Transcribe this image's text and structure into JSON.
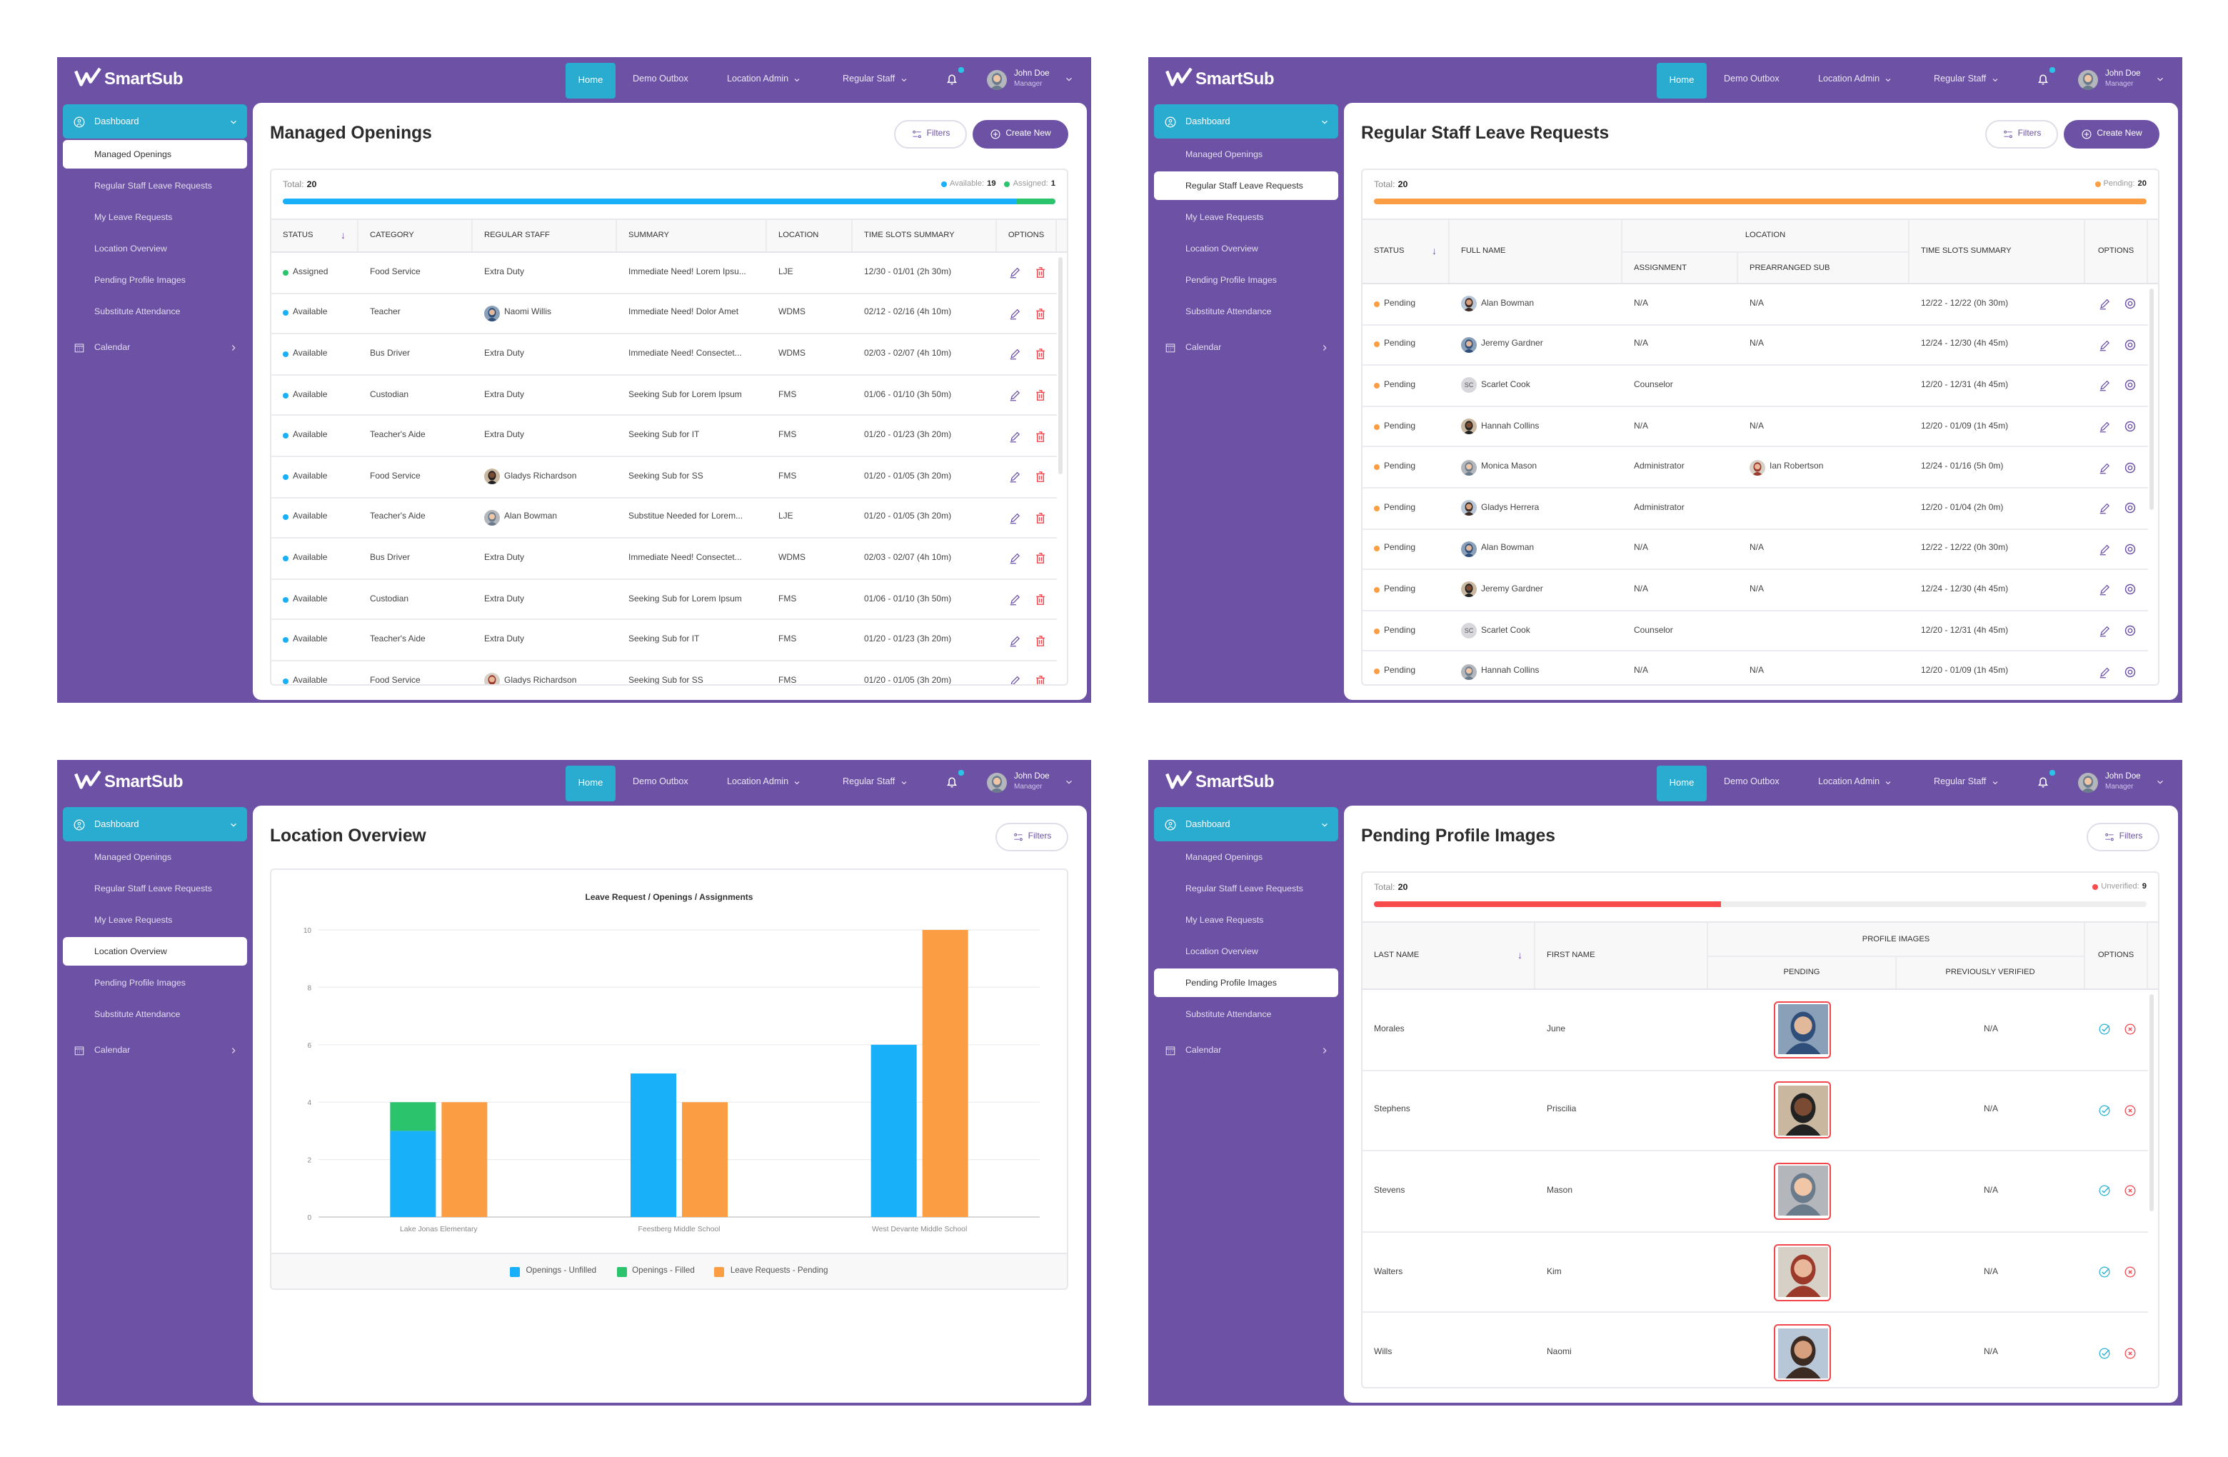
{
  "brand": {
    "name": "SmartSub"
  },
  "nav": {
    "items": [
      "Home",
      "Demo Outbox",
      "Location Admin",
      "Regular Staff"
    ],
    "user": {
      "name": "John Doe",
      "role": "Manager"
    }
  },
  "sidebar": {
    "dashboard": "Dashboard",
    "items": [
      "Managed Openings",
      "Regular Staff Leave Requests",
      "My Leave Requests",
      "Location Overview",
      "Pending Profile Images",
      "Substitute Attendance"
    ],
    "calendar": "Calendar"
  },
  "colors": {
    "brand_purple": "#6c51a5",
    "accent_teal": "#29acd0",
    "available": "#18b0f8",
    "assigned": "#2bc46d",
    "pending": "#fb9e43",
    "unverified": "#f84b4b"
  },
  "screens": [
    {
      "title": "Managed Openings",
      "active_item": 0,
      "filters_label": "Filters",
      "create_label": "Create New",
      "summary": {
        "total_label": "Total:",
        "total": 20,
        "legend": [
          {
            "label": "Available:",
            "value": 19,
            "color": "#18b0f8"
          },
          {
            "label": "Assigned:",
            "value": 1,
            "color": "#2bc46d"
          }
        ]
      },
      "table": {
        "columns": [
          "Status",
          "Category",
          "Regular Staff",
          "Summary",
          "Location",
          "Time Slots Summary",
          "Options"
        ],
        "sorted_by": "Status",
        "row_actions": [
          "edit-icon",
          "delete-icon"
        ],
        "rows": [
          {
            "status": "Assigned",
            "category": "Food Service",
            "staff": {
              "text": "Extra Duty"
            },
            "summary": "Immediate Need! Lorem Ipsu...",
            "location": "LJE",
            "time": "12/30 - 01/01 (2h 30m)"
          },
          {
            "status": "Available",
            "category": "Teacher",
            "staff": {
              "text": "Naomi Willis",
              "avatar": "photo"
            },
            "summary": "Immediate Need! Dolor Amet",
            "location": "WDMS",
            "time": "02/12 - 02/16 (4h 10m)"
          },
          {
            "status": "Available",
            "category": "Bus Driver",
            "staff": {
              "text": "Extra Duty"
            },
            "summary": "Immediate Need! Consectet...",
            "location": "WDMS",
            "time": "02/03 - 02/07 (4h 10m)"
          },
          {
            "status": "Available",
            "category": "Custodian",
            "staff": {
              "text": "Extra Duty"
            },
            "summary": "Seeking Sub for Lorem Ipsum",
            "location": "FMS",
            "time": "01/06 - 01/10 (3h 50m)"
          },
          {
            "status": "Available",
            "category": "Teacher's Aide",
            "staff": {
              "text": "Extra Duty"
            },
            "summary": "Seeking Sub for IT",
            "location": "FMS",
            "time": "01/20 - 01/23 (3h 20m)"
          },
          {
            "status": "Available",
            "category": "Food Service",
            "staff": {
              "text": "Gladys Richardson",
              "avatar": "photo"
            },
            "summary": "Seeking Sub for SS",
            "location": "FMS",
            "time": "01/20 - 01/05 (3h 20m)"
          },
          {
            "status": "Available",
            "category": "Teacher's Aide",
            "staff": {
              "text": "Alan Bowman",
              "avatar": "photo"
            },
            "summary": "Substitue Needed for Lorem...",
            "location": "LJE",
            "time": "01/20 - 01/05 (3h 20m)"
          },
          {
            "status": "Available",
            "category": "Bus Driver",
            "staff": {
              "text": "Extra Duty"
            },
            "summary": "Immediate Need! Consectet...",
            "location": "WDMS",
            "time": "02/03 - 02/07 (4h 10m)"
          },
          {
            "status": "Available",
            "category": "Custodian",
            "staff": {
              "text": "Extra Duty"
            },
            "summary": "Seeking Sub for Lorem Ipsum",
            "location": "FMS",
            "time": "01/06 - 01/10 (3h 50m)"
          },
          {
            "status": "Available",
            "category": "Teacher's Aide",
            "staff": {
              "text": "Extra Duty"
            },
            "summary": "Seeking Sub for IT",
            "location": "FMS",
            "time": "01/20 - 01/23 (3h 20m)"
          },
          {
            "status": "Available",
            "category": "Food Service",
            "staff": {
              "text": "Gladys Richardson",
              "avatar": "photo"
            },
            "summary": "Seeking Sub for SS",
            "location": "FMS",
            "time": "01/20 - 01/05 (3h 20m)"
          }
        ]
      }
    },
    {
      "title": "Regular Staff Leave Requests",
      "active_item": 1,
      "filters_label": "Filters",
      "create_label": "Create New",
      "summary": {
        "total_label": "Total:",
        "total": 20,
        "legend": [
          {
            "label": "Pending:",
            "value": 20,
            "color": "#fb9e43"
          }
        ]
      },
      "table": {
        "columns": [
          "Status",
          "Full Name",
          "Assignment",
          "Prearranged Sub",
          "Time Slots Summary",
          "Options"
        ],
        "group_header": "Location",
        "sorted_by": "Status",
        "row_actions": [
          "edit-icon",
          "view-icon"
        ],
        "rows": [
          {
            "status": "Pending",
            "name": {
              "text": "Alan Bowman",
              "avatar": "photo"
            },
            "assignment": "N/A",
            "prearranged": {
              "text": "N/A"
            },
            "time": "12/22 - 12/22 (0h 30m)"
          },
          {
            "status": "Pending",
            "name": {
              "text": "Jeremy Gardner",
              "avatar": "photo"
            },
            "assignment": "N/A",
            "prearranged": {
              "text": "N/A"
            },
            "time": "12/24 - 12/30 (4h 45m)"
          },
          {
            "status": "Pending",
            "name": {
              "text": "Scarlet Cook",
              "avatar": "initials",
              "initials": "SC"
            },
            "assignment": "Counselor",
            "prearranged": {
              "text": ""
            },
            "time": "12/20 - 12/31 (4h 45m)"
          },
          {
            "status": "Pending",
            "name": {
              "text": "Hannah Collins",
              "avatar": "photo"
            },
            "assignment": "N/A",
            "prearranged": {
              "text": "N/A"
            },
            "time": "12/20 - 01/09 (1h 45m)"
          },
          {
            "status": "Pending",
            "name": {
              "text": "Monica Mason",
              "avatar": "photo"
            },
            "assignment": "Administrator",
            "prearranged": {
              "text": "Ian Robertson",
              "avatar": "photo"
            },
            "time": "12/24 - 01/16 (5h 0m)"
          },
          {
            "status": "Pending",
            "name": {
              "text": "Gladys Herrera",
              "avatar": "photo"
            },
            "assignment": "Administrator",
            "prearranged": {
              "text": ""
            },
            "time": "12/20 - 01/04 (2h 0m)"
          },
          {
            "status": "Pending",
            "name": {
              "text": "Alan Bowman",
              "avatar": "photo"
            },
            "assignment": "N/A",
            "prearranged": {
              "text": "N/A"
            },
            "time": "12/22 - 12/22 (0h 30m)"
          },
          {
            "status": "Pending",
            "name": {
              "text": "Jeremy Gardner",
              "avatar": "photo"
            },
            "assignment": "N/A",
            "prearranged": {
              "text": "N/A"
            },
            "time": "12/24 - 12/30 (4h 45m)"
          },
          {
            "status": "Pending",
            "name": {
              "text": "Scarlet Cook",
              "avatar": "initials",
              "initials": "SC"
            },
            "assignment": "Counselor",
            "prearranged": {
              "text": ""
            },
            "time": "12/20 - 12/31 (4h 45m)"
          },
          {
            "status": "Pending",
            "name": {
              "text": "Hannah Collins",
              "avatar": "photo"
            },
            "assignment": "N/A",
            "prearranged": {
              "text": "N/A"
            },
            "time": "12/20 - 01/09 (1h 45m)"
          }
        ]
      }
    },
    {
      "title": "Location Overview",
      "active_item": 3,
      "filters_label": "Filters"
    },
    {
      "title": "Pending Profile Images",
      "active_item": 4,
      "filters_label": "Filters",
      "summary": {
        "total_label": "Total:",
        "total": 20,
        "legend": [
          {
            "label": "Unverified:",
            "value": 9,
            "color": "#f84b4b"
          }
        ]
      },
      "table": {
        "columns": [
          "Last Name",
          "First Name",
          "Pending",
          "Previously Verified",
          "Options"
        ],
        "group_header": "Profile Images",
        "sorted_by": "Last Name",
        "row_actions": [
          "approve-check-icon",
          "reject-x-icon"
        ],
        "rows": [
          {
            "last": "Morales",
            "first": "June",
            "pending": "profile-photo",
            "verified": "N/A"
          },
          {
            "last": "Stephens",
            "first": "Priscilia",
            "pending": "profile-photo",
            "verified": "N/A"
          },
          {
            "last": "Stevens",
            "first": "Mason",
            "pending": "profile-photo",
            "verified": "N/A"
          },
          {
            "last": "Walters",
            "first": "Kim",
            "pending": "profile-photo",
            "verified": "N/A"
          },
          {
            "last": "Wills",
            "first": "Naomi",
            "pending": "profile-photo",
            "verified": "N/A"
          }
        ]
      }
    }
  ],
  "chart_data": {
    "type": "bar",
    "title": "Leave Request / Openings / Assignments",
    "categories": [
      "Lake Jonas Elementary",
      "Feestberg Middle School",
      "West Devante Middle School"
    ],
    "series": [
      {
        "name": "Openings - Unfilled",
        "values": [
          3,
          5,
          6
        ],
        "color": "#18b0f8",
        "stack": "openings"
      },
      {
        "name": "Openings - Filled",
        "values": [
          1,
          0,
          0
        ],
        "color": "#2bc46d",
        "stack": "openings"
      },
      {
        "name": "Leave Requests - Pending",
        "values": [
          4,
          4,
          10
        ],
        "color": "#fb9e43",
        "stack": "leave"
      }
    ],
    "ylim": [
      0,
      10
    ],
    "yticks": [
      0,
      2,
      4,
      6,
      8,
      10
    ],
    "xlabel": "",
    "ylabel": "",
    "grid": true,
    "legend": "bottom"
  }
}
